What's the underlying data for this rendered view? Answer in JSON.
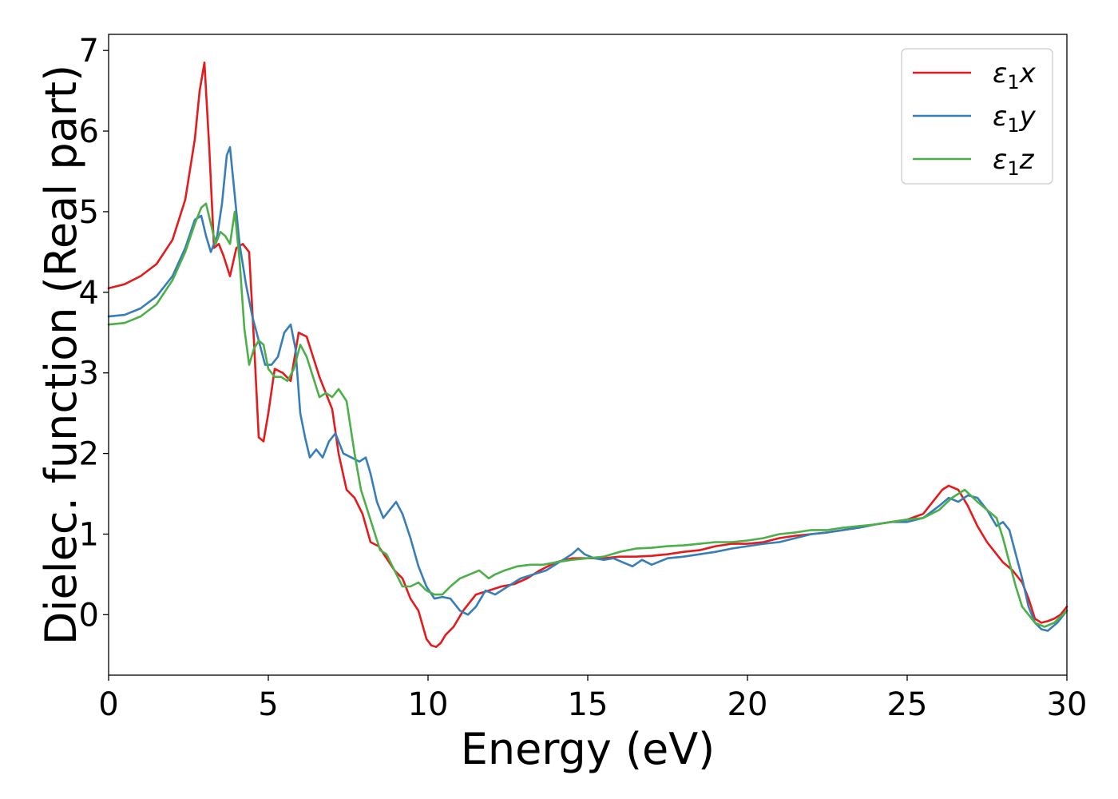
{
  "chart_data": {
    "type": "line",
    "title": "",
    "xlabel": "Energy (eV)",
    "ylabel": "Dielec. function (Real part)",
    "xlim": [
      0,
      30
    ],
    "ylim": [
      -0.75,
      7.2
    ],
    "xticks": [
      0,
      5,
      10,
      15,
      20,
      25,
      30
    ],
    "yticks": [
      0,
      1,
      2,
      3,
      4,
      5,
      6,
      7
    ],
    "grid": false,
    "legend_position": "top-right",
    "series": [
      {
        "name": "ε₁x",
        "legend_base": "ε",
        "legend_sub": "1",
        "legend_suffix": "x",
        "color": "#e41a1c",
        "x": [
          0,
          0.5,
          1,
          1.5,
          2,
          2.4,
          2.7,
          2.85,
          3.0,
          3.15,
          3.3,
          3.45,
          3.6,
          3.8,
          4.0,
          4.2,
          4.4,
          4.55,
          4.7,
          4.85,
          5.0,
          5.2,
          5.45,
          5.7,
          5.95,
          6.2,
          6.4,
          6.6,
          6.8,
          7.0,
          7.2,
          7.45,
          7.7,
          7.95,
          8.2,
          8.45,
          8.7,
          8.95,
          9.2,
          9.45,
          9.7,
          9.95,
          10.1,
          10.25,
          10.4,
          10.55,
          10.8,
          11.1,
          11.5,
          11.9,
          12.3,
          12.7,
          13.1,
          13.5,
          14.0,
          14.5,
          15,
          15.5,
          16,
          16.5,
          17,
          17.5,
          18,
          18.5,
          19,
          19.5,
          20,
          20.5,
          21,
          21.5,
          22,
          22.5,
          23,
          23.5,
          24,
          24.5,
          25,
          25.5,
          25.8,
          26.1,
          26.3,
          26.6,
          26.9,
          27.2,
          27.5,
          27.8,
          28.0,
          28.3,
          28.6,
          28.8,
          29.0,
          29.2,
          29.4,
          29.6,
          29.8,
          30
        ],
        "y": [
          4.05,
          4.1,
          4.2,
          4.35,
          4.65,
          5.15,
          5.9,
          6.5,
          6.85,
          5.8,
          4.55,
          4.6,
          4.45,
          4.2,
          4.55,
          4.6,
          4.5,
          3.4,
          2.2,
          2.15,
          2.5,
          3.05,
          3.0,
          2.9,
          3.5,
          3.45,
          3.2,
          2.95,
          2.75,
          2.55,
          2.0,
          1.55,
          1.45,
          1.25,
          0.9,
          0.85,
          0.7,
          0.55,
          0.45,
          0.2,
          0.05,
          -0.3,
          -0.38,
          -0.4,
          -0.35,
          -0.25,
          -0.15,
          0.05,
          0.25,
          0.3,
          0.35,
          0.38,
          0.45,
          0.55,
          0.65,
          0.7,
          0.7,
          0.7,
          0.72,
          0.72,
          0.73,
          0.75,
          0.78,
          0.8,
          0.85,
          0.88,
          0.88,
          0.9,
          0.95,
          0.98,
          1.0,
          1.02,
          1.05,
          1.08,
          1.12,
          1.15,
          1.18,
          1.25,
          1.4,
          1.55,
          1.6,
          1.55,
          1.35,
          1.1,
          0.9,
          0.75,
          0.65,
          0.55,
          0.4,
          0.2,
          -0.05,
          -0.1,
          -0.08,
          -0.05,
          0.0,
          0.1
        ]
      },
      {
        "name": "ε₁y",
        "legend_base": "ε",
        "legend_sub": "1",
        "legend_suffix": "y",
        "color": "#377eb8",
        "x": [
          0,
          0.5,
          1,
          1.5,
          2,
          2.4,
          2.7,
          2.9,
          3.05,
          3.2,
          3.4,
          3.55,
          3.7,
          3.8,
          3.95,
          4.1,
          4.3,
          4.5,
          4.7,
          4.9,
          5.1,
          5.3,
          5.5,
          5.7,
          5.85,
          6.0,
          6.15,
          6.3,
          6.5,
          6.7,
          6.9,
          7.1,
          7.35,
          7.6,
          7.85,
          8.05,
          8.2,
          8.4,
          8.6,
          8.8,
          9.0,
          9.2,
          9.45,
          9.7,
          9.95,
          10.2,
          10.45,
          10.7,
          11.0,
          11.25,
          11.5,
          11.8,
          12.1,
          12.5,
          12.9,
          13.3,
          13.7,
          14.1,
          14.5,
          14.7,
          14.9,
          15.2,
          15.5,
          15.8,
          16.1,
          16.4,
          16.7,
          17.0,
          17.5,
          18,
          18.5,
          19,
          19.5,
          20,
          20.5,
          21,
          21.5,
          22,
          22.5,
          23,
          23.5,
          24,
          24.5,
          25,
          25.5,
          26,
          26.3,
          26.6,
          26.9,
          27.2,
          27.5,
          27.8,
          28.0,
          28.2,
          28.4,
          28.6,
          28.8,
          29.0,
          29.2,
          29.4,
          29.7,
          30
        ],
        "y": [
          3.7,
          3.72,
          3.8,
          3.95,
          4.2,
          4.55,
          4.9,
          4.95,
          4.7,
          4.5,
          4.7,
          5.1,
          5.7,
          5.8,
          5.2,
          4.6,
          4.1,
          3.7,
          3.4,
          3.1,
          3.1,
          3.2,
          3.5,
          3.6,
          3.3,
          2.5,
          2.2,
          1.95,
          2.05,
          1.95,
          2.15,
          2.25,
          2.0,
          1.95,
          1.9,
          1.95,
          1.75,
          1.4,
          1.2,
          1.3,
          1.4,
          1.25,
          0.95,
          0.6,
          0.35,
          0.2,
          0.22,
          0.2,
          0.05,
          0.0,
          0.1,
          0.3,
          0.25,
          0.35,
          0.45,
          0.5,
          0.55,
          0.65,
          0.75,
          0.82,
          0.75,
          0.7,
          0.68,
          0.7,
          0.65,
          0.6,
          0.68,
          0.62,
          0.7,
          0.72,
          0.75,
          0.78,
          0.82,
          0.85,
          0.88,
          0.9,
          0.95,
          1.0,
          1.02,
          1.05,
          1.08,
          1.12,
          1.15,
          1.15,
          1.2,
          1.35,
          1.45,
          1.4,
          1.48,
          1.45,
          1.3,
          1.1,
          1.15,
          1.05,
          0.75,
          0.45,
          0.1,
          -0.1,
          -0.18,
          -0.2,
          -0.1,
          0.05
        ]
      },
      {
        "name": "ε₁z",
        "legend_base": "ε",
        "legend_sub": "1",
        "legend_suffix": "z",
        "color": "#4daf4a",
        "x": [
          0,
          0.5,
          1,
          1.5,
          2,
          2.4,
          2.7,
          2.9,
          3.05,
          3.2,
          3.35,
          3.5,
          3.65,
          3.8,
          3.95,
          4.1,
          4.25,
          4.4,
          4.55,
          4.7,
          4.85,
          5.0,
          5.2,
          5.4,
          5.6,
          5.8,
          6.0,
          6.2,
          6.4,
          6.6,
          6.8,
          7.0,
          7.2,
          7.45,
          7.7,
          7.9,
          8.1,
          8.3,
          8.5,
          8.7,
          8.95,
          9.2,
          9.45,
          9.7,
          9.95,
          10.2,
          10.45,
          10.7,
          11.0,
          11.3,
          11.6,
          11.9,
          12.1,
          12.4,
          12.8,
          13.2,
          13.6,
          14.0,
          14.5,
          15,
          15.5,
          16,
          16.5,
          17,
          17.5,
          18,
          18.5,
          19,
          19.5,
          20,
          20.5,
          21,
          21.5,
          22,
          22.5,
          23,
          23.5,
          24,
          24.5,
          25,
          25.5,
          26,
          26.4,
          26.8,
          27.2,
          27.5,
          27.8,
          28.0,
          28.2,
          28.4,
          28.6,
          28.8,
          29.0,
          29.3,
          29.6,
          30
        ],
        "y": [
          3.6,
          3.62,
          3.7,
          3.85,
          4.15,
          4.5,
          4.85,
          5.05,
          5.1,
          4.85,
          4.6,
          4.75,
          4.7,
          4.6,
          5.0,
          4.4,
          3.55,
          3.1,
          3.3,
          3.4,
          3.35,
          3.05,
          2.95,
          2.95,
          2.9,
          3.05,
          3.35,
          3.2,
          2.95,
          2.7,
          2.75,
          2.7,
          2.8,
          2.65,
          2.0,
          1.55,
          1.3,
          1.05,
          0.8,
          0.75,
          0.55,
          0.35,
          0.35,
          0.4,
          0.3,
          0.25,
          0.25,
          0.35,
          0.45,
          0.5,
          0.55,
          0.45,
          0.5,
          0.55,
          0.6,
          0.62,
          0.62,
          0.65,
          0.68,
          0.7,
          0.72,
          0.78,
          0.82,
          0.83,
          0.85,
          0.86,
          0.88,
          0.9,
          0.9,
          0.92,
          0.95,
          1.0,
          1.02,
          1.05,
          1.05,
          1.08,
          1.1,
          1.12,
          1.15,
          1.18,
          1.2,
          1.3,
          1.45,
          1.55,
          1.4,
          1.3,
          1.2,
          0.95,
          0.65,
          0.35,
          0.1,
          0.0,
          -0.1,
          -0.15,
          -0.1,
          0.05
        ]
      }
    ]
  }
}
